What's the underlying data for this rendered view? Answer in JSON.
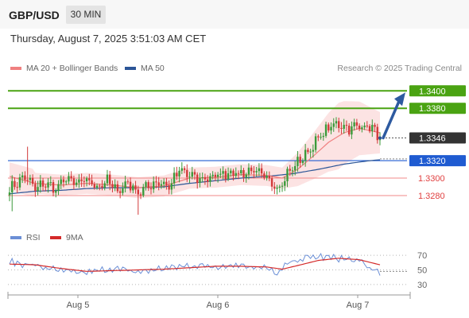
{
  "header": {
    "pair": "GBP/USD",
    "timeframe": "30 MIN"
  },
  "timestamp": "Thursday, August 7, 2025 3:51:03 AM CET",
  "legend": {
    "ma20": "MA 20 + Bollinger Bands",
    "ma50": "MA 50",
    "ma20_color": "#f08080",
    "ma50_color": "#2b5597",
    "copyright": "Research © 2025 Trading Central"
  },
  "rsi_legend": {
    "rsi": "RSI",
    "ma": "9MA",
    "rsi_color": "#6b8fd6",
    "ma_color": "#d42a2a"
  },
  "chart_data": {
    "type": "candlestick",
    "instrument": "GBP/USD",
    "interval": "30 MIN",
    "x_ticks": [
      "Aug 5",
      "Aug 6",
      "Aug 7"
    ],
    "price_ylim": [
      1.3249,
      1.3413
    ],
    "current_price": 1.3346,
    "levels": [
      {
        "value": 1.34,
        "label": "1.3400",
        "role": "target",
        "color": "#4aa312"
      },
      {
        "value": 1.338,
        "label": "1.3380",
        "role": "target",
        "color": "#4aa312"
      },
      {
        "value": 1.3346,
        "label": "1.3346",
        "role": "last",
        "color": "#333333"
      },
      {
        "value": 1.332,
        "label": "1.3320",
        "role": "pivot",
        "color": "#1f5bd1"
      },
      {
        "value": 1.33,
        "label": "1.3300",
        "role": "support",
        "color": "#e04040"
      },
      {
        "value": 1.328,
        "label": "1.3280",
        "role": "support",
        "color": "#e04040"
      }
    ],
    "forecast_arrow": {
      "from": 1.3346,
      "to": 1.34
    },
    "close_anchors": [
      [
        0,
        1.3287
      ],
      [
        3,
        1.3295
      ],
      [
        6,
        1.3302
      ],
      [
        10,
        1.3288
      ],
      [
        14,
        1.3294
      ],
      [
        18,
        1.3287
      ],
      [
        22,
        1.33
      ],
      [
        26,
        1.3293
      ],
      [
        30,
        1.3298
      ],
      [
        34,
        1.329
      ],
      [
        38,
        1.3297
      ],
      [
        42,
        1.3285
      ],
      [
        46,
        1.3295
      ],
      [
        50,
        1.3283
      ],
      [
        54,
        1.3291
      ],
      [
        58,
        1.3296
      ],
      [
        62,
        1.329
      ],
      [
        66,
        1.3309
      ],
      [
        70,
        1.3303
      ],
      [
        74,
        1.3298
      ],
      [
        78,
        1.3301
      ],
      [
        82,
        1.3304
      ],
      [
        86,
        1.3307
      ],
      [
        90,
        1.3305
      ],
      [
        94,
        1.3309
      ],
      [
        98,
        1.3303
      ],
      [
        102,
        1.3296
      ],
      [
        104,
        1.3289
      ],
      [
        106,
        1.3294
      ],
      [
        108,
        1.3305
      ],
      [
        112,
        1.3318
      ],
      [
        116,
        1.333
      ],
      [
        120,
        1.3345
      ],
      [
        124,
        1.3358
      ],
      [
        128,
        1.3362
      ],
      [
        132,
        1.3357
      ],
      [
        136,
        1.336
      ],
      [
        140,
        1.3359
      ],
      [
        142,
        1.3354
      ],
      [
        144,
        1.3347
      ]
    ],
    "ma20_anchors": [
      [
        0,
        1.3302
      ],
      [
        10,
        1.3294
      ],
      [
        20,
        1.3292
      ],
      [
        30,
        1.3294
      ],
      [
        40,
        1.3292
      ],
      [
        50,
        1.3289
      ],
      [
        60,
        1.3291
      ],
      [
        70,
        1.33
      ],
      [
        80,
        1.3301
      ],
      [
        90,
        1.3304
      ],
      [
        100,
        1.3303
      ],
      [
        106,
        1.33
      ],
      [
        112,
        1.331
      ],
      [
        118,
        1.3325
      ],
      [
        124,
        1.3341
      ],
      [
        130,
        1.3352
      ],
      [
        136,
        1.3357
      ],
      [
        144,
        1.3352
      ]
    ],
    "ma50_anchors": [
      [
        0,
        1.3282
      ],
      [
        10,
        1.3285
      ],
      [
        20,
        1.3286
      ],
      [
        30,
        1.3288
      ],
      [
        40,
        1.3289
      ],
      [
        50,
        1.3289
      ],
      [
        60,
        1.329
      ],
      [
        70,
        1.3294
      ],
      [
        80,
        1.3297
      ],
      [
        90,
        1.33
      ],
      [
        100,
        1.3302
      ],
      [
        110,
        1.3305
      ],
      [
        120,
        1.331
      ],
      [
        130,
        1.3316
      ],
      [
        140,
        1.332
      ],
      [
        144,
        1.3321
      ]
    ],
    "rsi": {
      "ylim": [
        20,
        80
      ],
      "levels": [
        70,
        50,
        30
      ],
      "rsi_anchors": [
        [
          0,
          61
        ],
        [
          10,
          56
        ],
        [
          20,
          48
        ],
        [
          30,
          46
        ],
        [
          40,
          52
        ],
        [
          50,
          47
        ],
        [
          60,
          52
        ],
        [
          70,
          56
        ],
        [
          80,
          55
        ],
        [
          90,
          57
        ],
        [
          100,
          52
        ],
        [
          104,
          44
        ],
        [
          108,
          58
        ],
        [
          114,
          66
        ],
        [
          120,
          68
        ],
        [
          128,
          66
        ],
        [
          136,
          62
        ],
        [
          140,
          52
        ],
        [
          144,
          48
        ]
      ],
      "ma_anchors": [
        [
          0,
          58
        ],
        [
          10,
          57
        ],
        [
          20,
          52
        ],
        [
          30,
          48
        ],
        [
          40,
          49
        ],
        [
          50,
          50
        ],
        [
          60,
          51
        ],
        [
          70,
          53
        ],
        [
          80,
          55
        ],
        [
          90,
          55
        ],
        [
          100,
          54
        ],
        [
          106,
          51
        ],
        [
          112,
          56
        ],
        [
          120,
          63
        ],
        [
          128,
          66
        ],
        [
          136,
          64
        ],
        [
          144,
          57
        ]
      ]
    }
  }
}
